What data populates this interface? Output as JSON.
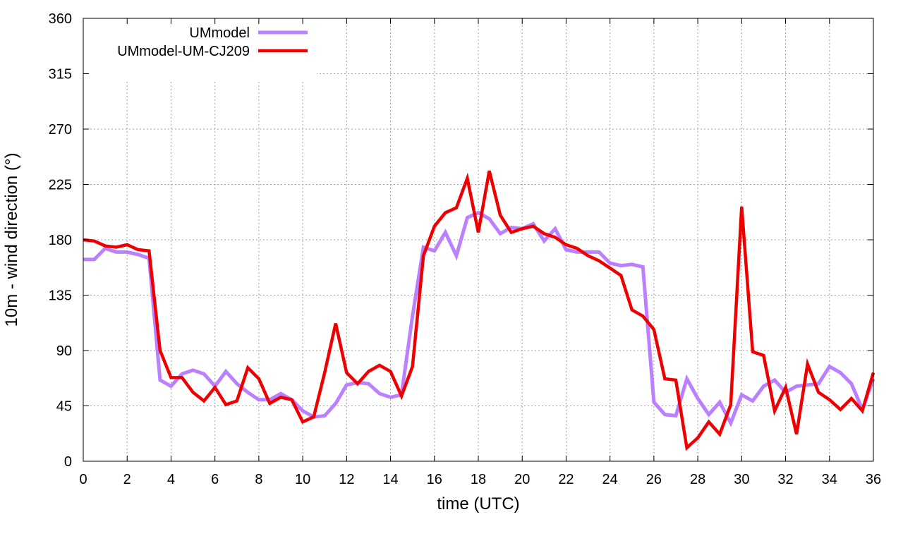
{
  "chart_data": {
    "type": "line",
    "title": "",
    "xlabel": "time (UTC)",
    "ylabel": "10m - wind direction (°)",
    "xlim": [
      0,
      36
    ],
    "ylim": [
      0,
      360
    ],
    "xticks": [
      0,
      2,
      4,
      6,
      8,
      10,
      12,
      14,
      16,
      18,
      20,
      22,
      24,
      26,
      28,
      30,
      32,
      34,
      36
    ],
    "yticks": [
      0,
      45,
      90,
      135,
      180,
      225,
      270,
      315,
      360
    ],
    "grid": true,
    "legend_position": "top-left",
    "x": [
      0,
      0.5,
      1,
      1.5,
      2,
      2.5,
      3,
      3.5,
      4,
      4.5,
      5,
      5.5,
      6,
      6.5,
      7,
      7.5,
      8,
      8.5,
      9,
      9.5,
      10,
      10.5,
      11,
      11.5,
      12,
      12.5,
      13,
      13.5,
      14,
      14.5,
      15,
      15.5,
      16,
      16.5,
      17,
      17.5,
      18,
      18.5,
      19,
      19.5,
      20,
      20.5,
      21,
      21.5,
      22,
      22.5,
      23,
      23.5,
      24,
      24.5,
      25,
      25.5,
      26,
      26.5,
      27,
      27.5,
      28,
      28.5,
      29,
      29.5,
      30,
      30.5,
      31,
      31.5,
      32,
      32.5,
      33,
      33.5,
      34,
      34.5,
      35,
      35.5,
      36
    ],
    "series": [
      {
        "name": "UMmodel",
        "color": "#bb80ff",
        "values": [
          164,
          164,
          173,
          170,
          170,
          168,
          165,
          66,
          61,
          71,
          74,
          71,
          61,
          73,
          63,
          56,
          50,
          50,
          55,
          50,
          41,
          36,
          37,
          47,
          62,
          64,
          63,
          55,
          52,
          54,
          118,
          174,
          171,
          186,
          167,
          198,
          202,
          197,
          185,
          190,
          189,
          193,
          179,
          189,
          172,
          170,
          170,
          170,
          161,
          159,
          160,
          158,
          48,
          38,
          37,
          67,
          51,
          38,
          48,
          31,
          54,
          49,
          61,
          66,
          56,
          61,
          62,
          63,
          77,
          72,
          63,
          42,
          67
        ]
      },
      {
        "name": "UMmodel-UM-CJ209",
        "color": "#ee0000",
        "values": [
          180,
          179,
          175,
          174,
          176,
          172,
          171,
          90,
          68,
          68,
          56,
          49,
          60,
          46,
          49,
          76,
          67,
          47,
          52,
          50,
          32,
          36,
          72,
          112,
          72,
          63,
          73,
          78,
          73,
          53,
          77,
          167,
          191,
          202,
          206,
          230,
          186,
          236,
          200,
          186,
          189,
          191,
          185,
          182,
          176,
          173,
          167,
          163,
          157,
          151,
          123,
          118,
          107,
          67,
          66,
          11,
          19,
          32,
          22,
          46,
          207,
          89,
          86,
          41,
          60,
          22,
          79,
          56,
          50,
          42,
          51,
          41,
          72
        ]
      }
    ]
  }
}
